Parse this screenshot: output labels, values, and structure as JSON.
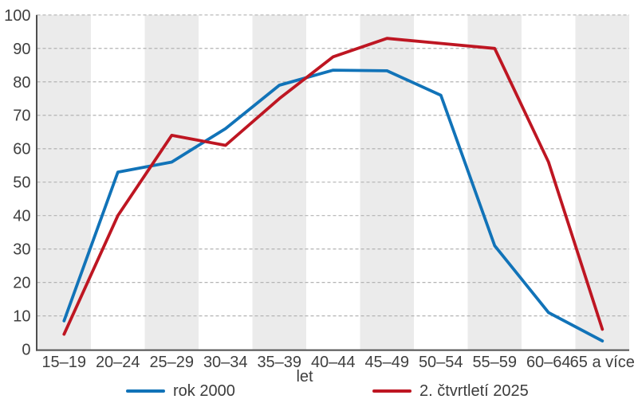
{
  "chart_data": {
    "type": "line",
    "title": "",
    "categories": [
      "15–19",
      "20–24",
      "25–29",
      "30–34",
      "35–39",
      "40–44",
      "45–49",
      "50–54",
      "55–59",
      "60–64",
      "65 a více"
    ],
    "series": [
      {
        "name": "rok 2000",
        "color": "#1173b8",
        "values": [
          8.5,
          53,
          56,
          66,
          79,
          83.5,
          83.3,
          76,
          31,
          11,
          2.5
        ]
      },
      {
        "name": "2. čtvrtletí 2025",
        "color": "#be1622",
        "values": [
          4.5,
          40,
          64,
          61,
          75,
          87.5,
          93,
          91.5,
          90,
          56,
          6
        ]
      }
    ],
    "xlabel": "let",
    "ylabel": "",
    "ylim": [
      0,
      100
    ],
    "ytick_step": 10,
    "grid": "horizontal-dashed",
    "legend_position": "bottom",
    "plot_band_color": "#ebebeb",
    "gridline_color": "#b3b3b3",
    "axis_color": "#4f4f4f",
    "text_color": "#3f3f3f",
    "background": "#ffffff"
  }
}
